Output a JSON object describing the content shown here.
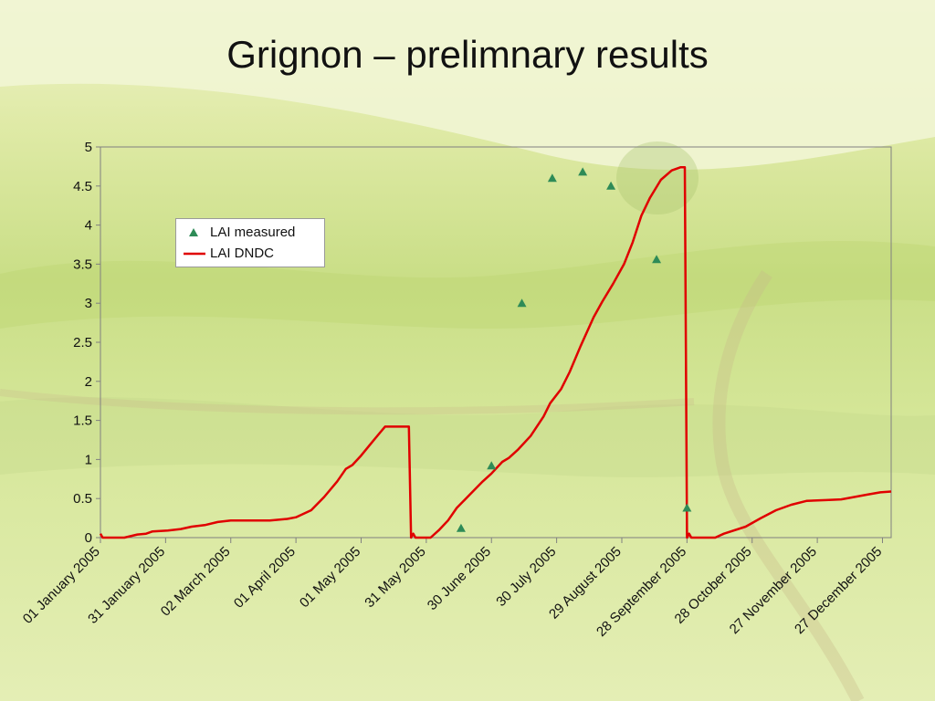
{
  "title": "Grignon – prelimnary results",
  "colors": {
    "measured": "#2e8b57",
    "model": "#e00000",
    "plot_border": "#808080"
  },
  "chart_data": {
    "type": "line",
    "xlabel": "",
    "ylabel": "",
    "ylim": [
      0,
      5
    ],
    "yticks": [
      "0",
      "0.5",
      "1",
      "1.5",
      "2",
      "2.5",
      "3",
      "3.5",
      "4",
      "4.5",
      "5"
    ],
    "xlim": [
      "2005-01-01",
      "2005-12-31"
    ],
    "xtick_labels": [
      "01 January 2005",
      "31 January 2005",
      "02 March 2005",
      "01 April 2005",
      "01 May 2005",
      "31 May 2005",
      "30 June 2005",
      "30 July 2005",
      "29 August 2005",
      "28 September 2005",
      "28 October 2005",
      "27 November 2005",
      "27 December 2005"
    ],
    "xtick_dates": [
      "2005-01-01",
      "2005-01-31",
      "2005-03-02",
      "2005-04-01",
      "2005-05-01",
      "2005-05-31",
      "2005-06-30",
      "2005-07-30",
      "2005-08-29",
      "2005-09-28",
      "2005-10-28",
      "2005-11-27",
      "2005-12-27"
    ],
    "grid": false,
    "legend_position": "top-left",
    "series": [
      {
        "name": "LAI measured",
        "kind": "scatter",
        "points": [
          {
            "x": "2005-06-16",
            "y": 0.12
          },
          {
            "x": "2005-06-30",
            "y": 0.92
          },
          {
            "x": "2005-07-14",
            "y": 3.0
          },
          {
            "x": "2005-07-28",
            "y": 4.6
          },
          {
            "x": "2005-08-11",
            "y": 4.68
          },
          {
            "x": "2005-08-24",
            "y": 4.5
          },
          {
            "x": "2005-09-14",
            "y": 3.56
          },
          {
            "x": "2005-09-28",
            "y": 0.38
          }
        ]
      },
      {
        "name": "LAI DNDC",
        "kind": "line",
        "points": [
          {
            "x": "2005-01-01",
            "y": 0.05
          },
          {
            "x": "2005-01-02",
            "y": 0.0
          },
          {
            "x": "2005-01-12",
            "y": 0.0
          },
          {
            "x": "2005-01-18",
            "y": 0.04
          },
          {
            "x": "2005-01-22",
            "y": 0.05
          },
          {
            "x": "2005-01-25",
            "y": 0.08
          },
          {
            "x": "2005-02-01",
            "y": 0.09
          },
          {
            "x": "2005-02-07",
            "y": 0.11
          },
          {
            "x": "2005-02-12",
            "y": 0.14
          },
          {
            "x": "2005-02-18",
            "y": 0.16
          },
          {
            "x": "2005-02-24",
            "y": 0.2
          },
          {
            "x": "2005-03-02",
            "y": 0.22
          },
          {
            "x": "2005-03-10",
            "y": 0.22
          },
          {
            "x": "2005-03-20",
            "y": 0.22
          },
          {
            "x": "2005-03-28",
            "y": 0.24
          },
          {
            "x": "2005-04-01",
            "y": 0.26
          },
          {
            "x": "2005-04-08",
            "y": 0.35
          },
          {
            "x": "2005-04-14",
            "y": 0.52
          },
          {
            "x": "2005-04-20",
            "y": 0.72
          },
          {
            "x": "2005-04-24",
            "y": 0.88
          },
          {
            "x": "2005-04-27",
            "y": 0.93
          },
          {
            "x": "2005-05-01",
            "y": 1.05
          },
          {
            "x": "2005-05-06",
            "y": 1.22
          },
          {
            "x": "2005-05-09",
            "y": 1.32
          },
          {
            "x": "2005-05-12",
            "y": 1.42
          },
          {
            "x": "2005-05-23",
            "y": 1.42
          },
          {
            "x": "2005-05-24",
            "y": 0.0
          },
          {
            "x": "2005-05-25",
            "y": 0.05
          },
          {
            "x": "2005-05-26",
            "y": 0.0
          },
          {
            "x": "2005-06-02",
            "y": 0.0
          },
          {
            "x": "2005-06-06",
            "y": 0.1
          },
          {
            "x": "2005-06-10",
            "y": 0.22
          },
          {
            "x": "2005-06-14",
            "y": 0.38
          },
          {
            "x": "2005-06-20",
            "y": 0.55
          },
          {
            "x": "2005-06-26",
            "y": 0.72
          },
          {
            "x": "2005-06-30",
            "y": 0.82
          },
          {
            "x": "2005-07-05",
            "y": 0.97
          },
          {
            "x": "2005-07-08",
            "y": 1.02
          },
          {
            "x": "2005-07-12",
            "y": 1.12
          },
          {
            "x": "2005-07-18",
            "y": 1.3
          },
          {
            "x": "2005-07-24",
            "y": 1.55
          },
          {
            "x": "2005-07-27",
            "y": 1.72
          },
          {
            "x": "2005-08-01",
            "y": 1.9
          },
          {
            "x": "2005-08-05",
            "y": 2.12
          },
          {
            "x": "2005-08-10",
            "y": 2.45
          },
          {
            "x": "2005-08-16",
            "y": 2.82
          },
          {
            "x": "2005-08-20",
            "y": 3.02
          },
          {
            "x": "2005-08-25",
            "y": 3.25
          },
          {
            "x": "2005-08-30",
            "y": 3.5
          },
          {
            "x": "2005-09-03",
            "y": 3.78
          },
          {
            "x": "2005-09-07",
            "y": 4.12
          },
          {
            "x": "2005-09-11",
            "y": 4.35
          },
          {
            "x": "2005-09-16",
            "y": 4.58
          },
          {
            "x": "2005-09-21",
            "y": 4.7
          },
          {
            "x": "2005-09-25",
            "y": 4.74
          },
          {
            "x": "2005-09-27",
            "y": 4.74
          },
          {
            "x": "2005-09-28",
            "y": 0.0
          },
          {
            "x": "2005-09-29",
            "y": 0.05
          },
          {
            "x": "2005-09-30",
            "y": 0.0
          },
          {
            "x": "2005-10-11",
            "y": 0.0
          },
          {
            "x": "2005-10-15",
            "y": 0.05
          },
          {
            "x": "2005-10-25",
            "y": 0.14
          },
          {
            "x": "2005-11-01",
            "y": 0.25
          },
          {
            "x": "2005-11-08",
            "y": 0.35
          },
          {
            "x": "2005-11-15",
            "y": 0.42
          },
          {
            "x": "2005-11-22",
            "y": 0.47
          },
          {
            "x": "2005-12-01",
            "y": 0.48
          },
          {
            "x": "2005-12-08",
            "y": 0.49
          },
          {
            "x": "2005-12-14",
            "y": 0.52
          },
          {
            "x": "2005-12-20",
            "y": 0.55
          },
          {
            "x": "2005-12-26",
            "y": 0.58
          },
          {
            "x": "2005-12-31",
            "y": 0.59
          }
        ]
      }
    ]
  }
}
